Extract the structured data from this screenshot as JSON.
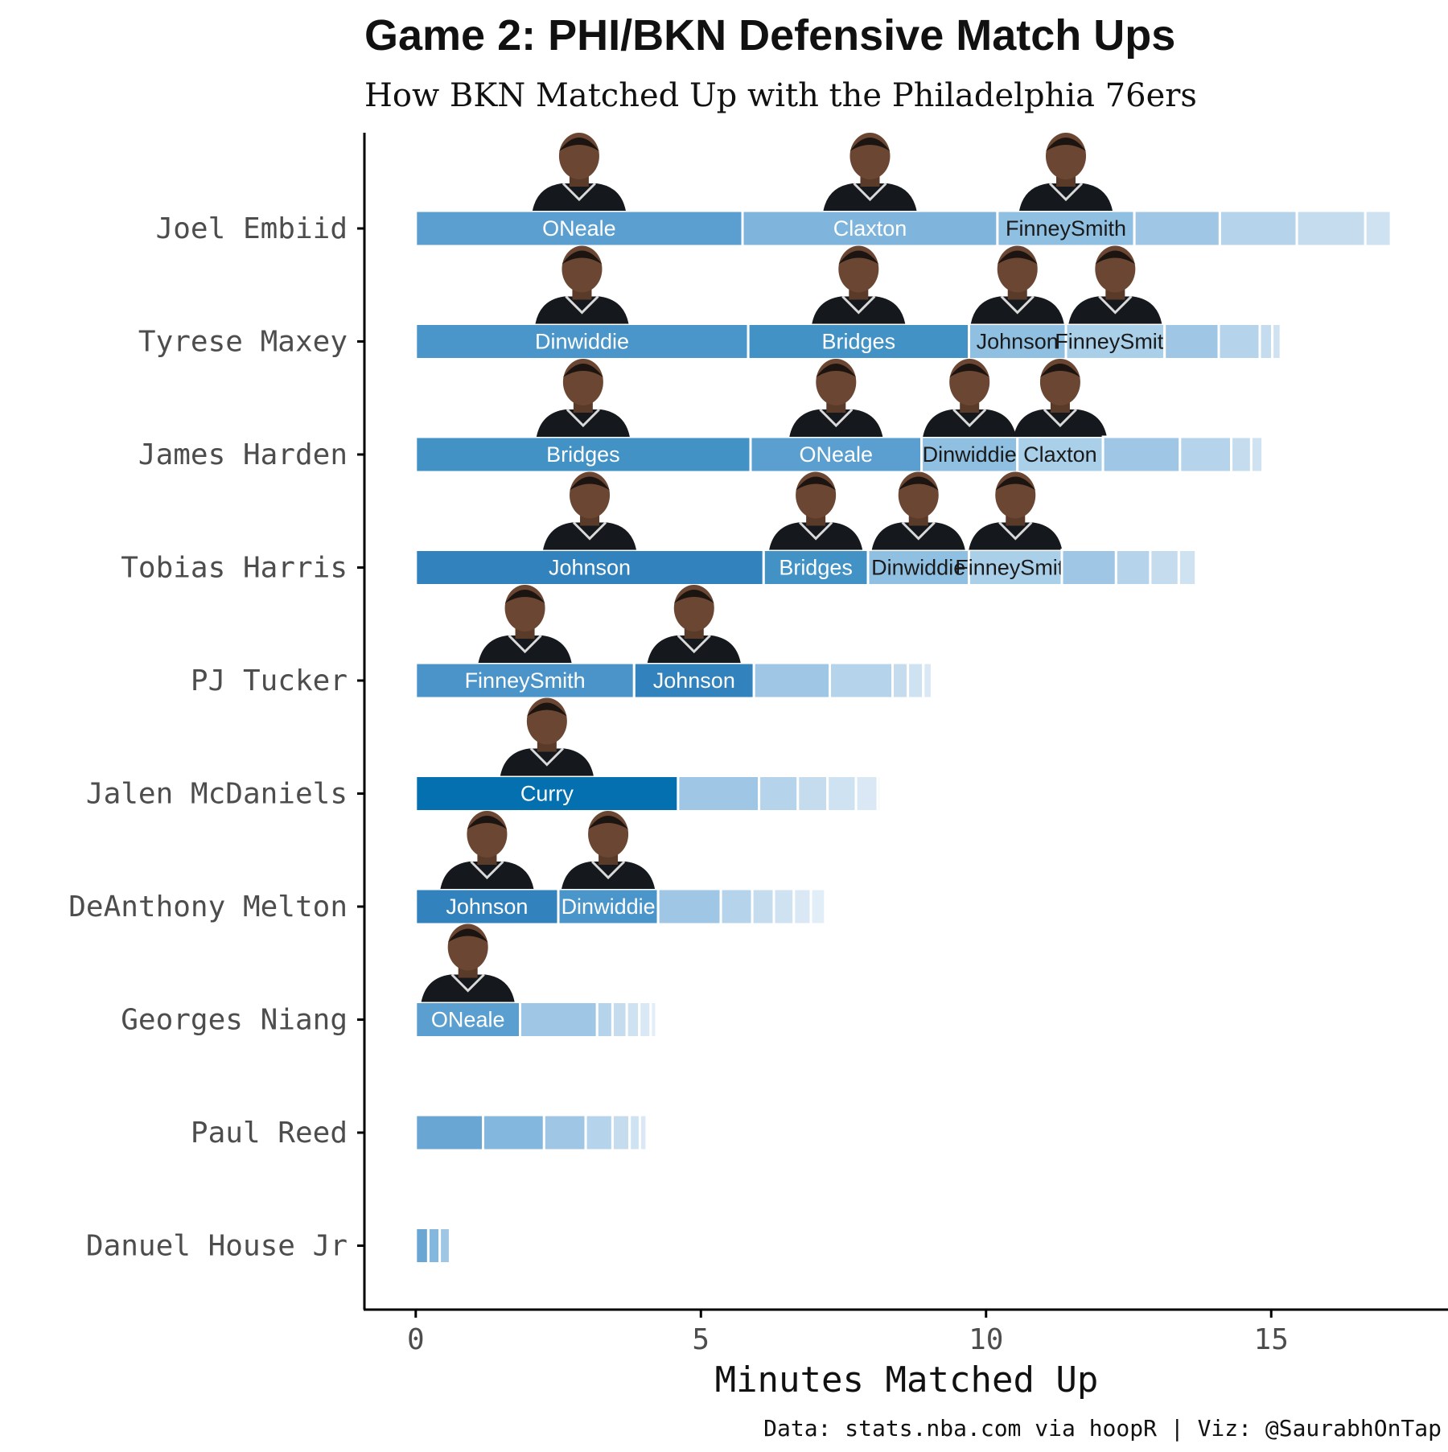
{
  "chart_data": {
    "type": "bar",
    "orientation": "horizontal",
    "stacked": true,
    "title": "Game 2: PHI/BKN Defensive Match Ups",
    "subtitle": "How BKN Matched Up with the Philadelphia 76ers",
    "xlabel": "Minutes Matched Up",
    "ylabel": "",
    "xlim": [
      -0.9,
      18.1
    ],
    "xticks": [
      0,
      5,
      10,
      15
    ],
    "caption": "Data: stats.nba.com via hoopR | Viz: @SaurabhOnTap",
    "grid": false,
    "legend": "none",
    "categories": [
      "Joel Embiid",
      "Tyrese Maxey",
      "James Harden",
      "Tobias Harris",
      "PJ Tucker",
      "Jalen McDaniels",
      "DeAnthony Melton",
      "Georges Niang",
      "Paul Reed",
      "Danuel House Jr"
    ],
    "rows": [
      {
        "player": "Joel Embiid",
        "segments": [
          {
            "defender": "ONeale",
            "minutes": 5.73,
            "label": true
          },
          {
            "defender": "Claxton",
            "minutes": 4.47,
            "label": true
          },
          {
            "defender": "FinneySmith",
            "minutes": 2.4,
            "label": true
          },
          {
            "defender": "",
            "minutes": 1.5,
            "label": false
          },
          {
            "defender": "",
            "minutes": 1.35,
            "label": false
          },
          {
            "defender": "",
            "minutes": 1.2,
            "label": false
          },
          {
            "defender": "",
            "minutes": 0.45,
            "label": false
          }
        ]
      },
      {
        "player": "Tyrese Maxey",
        "segments": [
          {
            "defender": "Dinwiddie",
            "minutes": 5.83,
            "label": true
          },
          {
            "defender": "Bridges",
            "minutes": 3.87,
            "label": true
          },
          {
            "defender": "Johnson",
            "minutes": 1.7,
            "label": true
          },
          {
            "defender": "FinneySmith",
            "minutes": 1.73,
            "label": true
          },
          {
            "defender": "",
            "minutes": 0.95,
            "label": false
          },
          {
            "defender": "",
            "minutes": 0.72,
            "label": false
          },
          {
            "defender": "",
            "minutes": 0.22,
            "label": false
          },
          {
            "defender": "",
            "minutes": 0.15,
            "label": false
          }
        ]
      },
      {
        "player": "James Harden",
        "segments": [
          {
            "defender": "Bridges",
            "minutes": 5.87,
            "label": true
          },
          {
            "defender": "ONeale",
            "minutes": 3.0,
            "label": true
          },
          {
            "defender": "Dinwiddie",
            "minutes": 1.68,
            "label": true
          },
          {
            "defender": "Claxton",
            "minutes": 1.5,
            "label": true
          },
          {
            "defender": "",
            "minutes": 1.35,
            "label": false
          },
          {
            "defender": "",
            "minutes": 0.9,
            "label": false
          },
          {
            "defender": "",
            "minutes": 0.35,
            "label": false
          },
          {
            "defender": "",
            "minutes": 0.2,
            "label": false
          }
        ]
      },
      {
        "player": "Tobias Harris",
        "segments": [
          {
            "defender": "Johnson",
            "minutes": 6.1,
            "label": true
          },
          {
            "defender": "Bridges",
            "minutes": 1.83,
            "label": true
          },
          {
            "defender": "Dinwiddie",
            "minutes": 1.77,
            "label": true
          },
          {
            "defender": "FinneySmith",
            "minutes": 1.63,
            "label": true
          },
          {
            "defender": "",
            "minutes": 0.95,
            "label": false
          },
          {
            "defender": "",
            "minutes": 0.6,
            "label": false
          },
          {
            "defender": "",
            "minutes": 0.5,
            "label": false
          },
          {
            "defender": "",
            "minutes": 0.3,
            "label": false
          }
        ]
      },
      {
        "player": "PJ Tucker",
        "segments": [
          {
            "defender": "FinneySmith",
            "minutes": 3.83,
            "label": true
          },
          {
            "defender": "Johnson",
            "minutes": 2.1,
            "label": true
          },
          {
            "defender": "",
            "minutes": 1.33,
            "label": false
          },
          {
            "defender": "",
            "minutes": 1.1,
            "label": false
          },
          {
            "defender": "",
            "minutes": 0.27,
            "label": false
          },
          {
            "defender": "",
            "minutes": 0.27,
            "label": false
          },
          {
            "defender": "",
            "minutes": 0.15,
            "label": false
          }
        ]
      },
      {
        "player": "Jalen McDaniels",
        "segments": [
          {
            "defender": "Curry",
            "minutes": 4.6,
            "label": true
          },
          {
            "defender": "",
            "minutes": 1.42,
            "label": false
          },
          {
            "defender": "",
            "minutes": 0.68,
            "label": false
          },
          {
            "defender": "",
            "minutes": 0.52,
            "label": false
          },
          {
            "defender": "",
            "minutes": 0.5,
            "label": false
          },
          {
            "defender": "",
            "minutes": 0.38,
            "label": false
          },
          {
            "defender": "",
            "minutes": 0.05,
            "label": false
          }
        ]
      },
      {
        "player": "DeAnthony Melton",
        "segments": [
          {
            "defender": "Johnson",
            "minutes": 2.5,
            "label": true
          },
          {
            "defender": "Dinwiddie",
            "minutes": 1.75,
            "label": true
          },
          {
            "defender": "",
            "minutes": 1.1,
            "label": false
          },
          {
            "defender": "",
            "minutes": 0.55,
            "label": false
          },
          {
            "defender": "",
            "minutes": 0.38,
            "label": false
          },
          {
            "defender": "",
            "minutes": 0.35,
            "label": false
          },
          {
            "defender": "",
            "minutes": 0.3,
            "label": false
          },
          {
            "defender": "",
            "minutes": 0.25,
            "label": false
          }
        ]
      },
      {
        "player": "Georges Niang",
        "segments": [
          {
            "defender": "ONeale",
            "minutes": 1.83,
            "label": true
          },
          {
            "defender": "",
            "minutes": 1.35,
            "label": false
          },
          {
            "defender": "",
            "minutes": 0.27,
            "label": false
          },
          {
            "defender": "",
            "minutes": 0.25,
            "label": false
          },
          {
            "defender": "",
            "minutes": 0.22,
            "label": false
          },
          {
            "defender": "",
            "minutes": 0.2,
            "label": false
          },
          {
            "defender": "",
            "minutes": 0.1,
            "label": false
          }
        ]
      },
      {
        "player": "Paul Reed",
        "segments": [
          {
            "defender": "",
            "minutes": 1.18,
            "label": false
          },
          {
            "defender": "",
            "minutes": 1.07,
            "label": false
          },
          {
            "defender": "",
            "minutes": 0.73,
            "label": false
          },
          {
            "defender": "",
            "minutes": 0.47,
            "label": false
          },
          {
            "defender": "",
            "minutes": 0.3,
            "label": false
          },
          {
            "defender": "",
            "minutes": 0.18,
            "label": false
          },
          {
            "defender": "",
            "minutes": 0.12,
            "label": false
          }
        ]
      },
      {
        "player": "Danuel House Jr",
        "segments": [
          {
            "defender": "",
            "minutes": 0.22,
            "label": false
          },
          {
            "defender": "",
            "minutes": 0.2,
            "label": false
          },
          {
            "defender": "",
            "minutes": 0.18,
            "label": false
          }
        ]
      }
    ],
    "colors": {
      "Curry": "#0570b0",
      "Johnson": "#3182bd",
      "Bridges": "#4292c6",
      "Dinwiddie": "#4a95c9",
      "FinneySmith": "#4a94ca",
      "ONeale": "#5a9fd0",
      "Claxton": "#7fb5dc",
      "text_light": "#ffffff",
      "text_dark": "#1a1a1a",
      "axis": "#000000",
      "tick_label": "#4d4d4d"
    }
  }
}
